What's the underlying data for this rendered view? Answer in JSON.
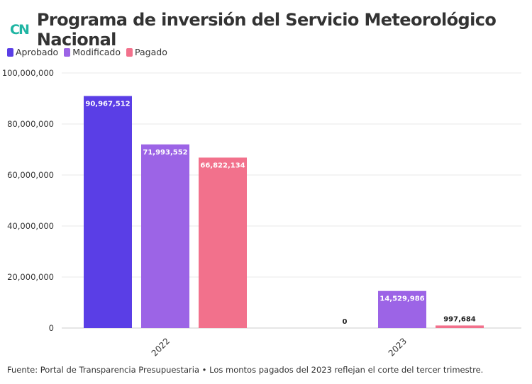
{
  "logo": "CN",
  "chart_data": {
    "type": "bar",
    "title": "Programa de inversión del Servicio Meteorológico Nacional",
    "categories": [
      "2022",
      "2023"
    ],
    "series": [
      {
        "name": "Aprobado",
        "color": "#5a3ee6",
        "values": [
          90967512,
          0
        ]
      },
      {
        "name": "Modificado",
        "color": "#9c64e6",
        "values": [
          71993552,
          14529986
        ]
      },
      {
        "name": "Pagado",
        "color": "#f2718c",
        "values": [
          66822134,
          997684
        ]
      }
    ],
    "data_labels": [
      [
        "90,967,512",
        "0"
      ],
      [
        "71,993,552",
        "14,529,986"
      ],
      [
        "66,822,134",
        "997,684"
      ]
    ],
    "ylim": [
      0,
      100000000
    ],
    "yticks": [
      0,
      20000000,
      40000000,
      60000000,
      80000000,
      100000000
    ],
    "ytick_labels": [
      "0",
      "20,000,000",
      "40,000,000",
      "60,000,000",
      "80,000,000",
      "100,000,000"
    ],
    "grid": true,
    "legend": "top-left"
  },
  "footer": "Fuente: Portal de Transparencia Presupuestaria • Los montos pagados del 2023 reflejan el corte del tercer trimestre."
}
